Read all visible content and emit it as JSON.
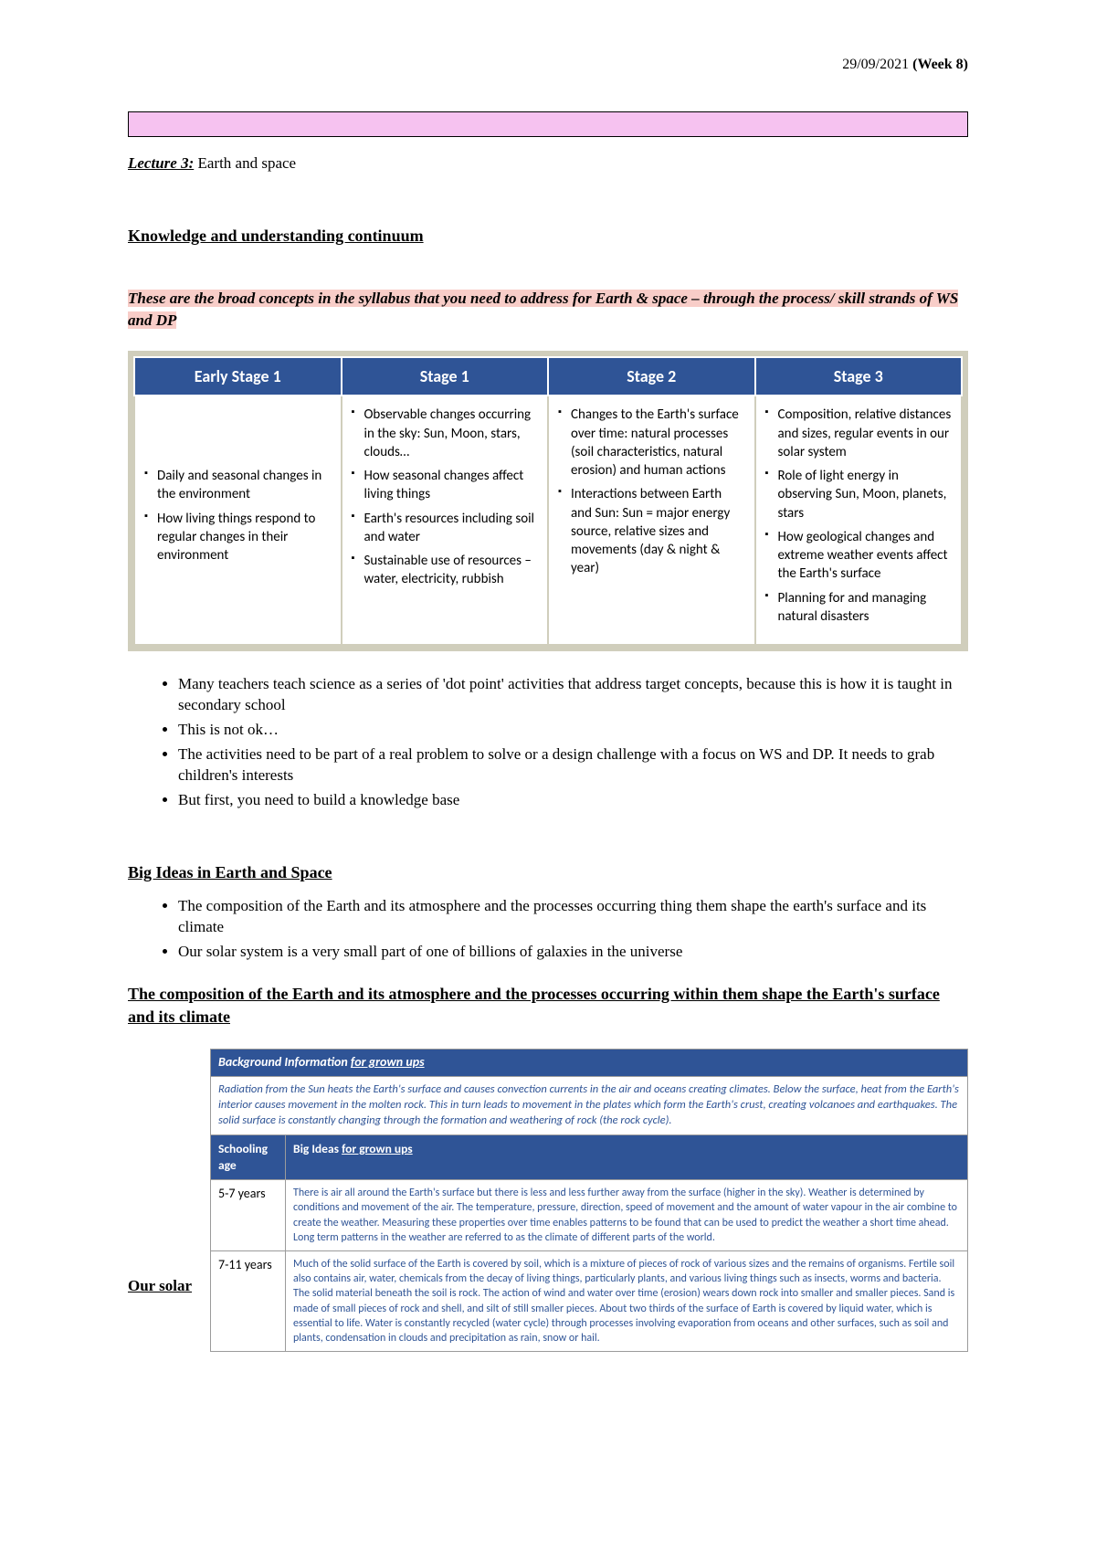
{
  "header": {
    "date": "29/09/2021",
    "week": "(Week 8)"
  },
  "lecture": {
    "label": "Lecture 3:",
    "title": "Earth and space"
  },
  "section1": "Knowledge and understanding continuum",
  "intro": "These are the broad concepts in the syllabus that you need to address for Earth & space – through the process/ skill strands of WS and DP",
  "stageTable": {
    "headers": [
      "Early Stage 1",
      "Stage 1",
      "Stage 2",
      "Stage 3"
    ],
    "cells": {
      "es1": [
        "Daily and seasonal changes in the environment",
        "How living things respond to regular changes in their environment"
      ],
      "s1": [
        "Observable changes occurring in the sky: Sun, Moon, stars, clouds…",
        "How seasonal changes affect living things",
        "Earth's resources including soil and water",
        "Sustainable use of resources – water, electricity, rubbish"
      ],
      "s2": [
        "Changes to the Earth's surface over time: natural processes (soil characteristics, natural erosion) and human actions",
        "Interactions between Earth and Sun: Sun = major energy source, relative sizes and movements (day & night & year)"
      ],
      "s3": [
        "Composition, relative distances and sizes, regular events in our solar system",
        "Role of light energy in observing Sun, Moon, planets, stars",
        "How geological changes and extreme weather events affect the Earth's surface",
        "Planning for and managing natural disasters"
      ]
    }
  },
  "notes": [
    "Many teachers teach science as a series of 'dot point' activities that address target concepts, because this is how it is taught in secondary school",
    "This is not ok…",
    "The activities need to be part of a real problem to solve or a design challenge with a focus on WS and DP. It needs to grab children's interests",
    "But first, you need to build a knowledge base"
  ],
  "bigIdeasHeading": "Big Ideas in Earth and Space",
  "bigIdeas": [
    "The composition of the Earth and its atmosphere and the processes occurring thing them shape the earth's surface and its climate",
    "Our solar system is a very small part of one of billions of galaxies in the universe"
  ],
  "subHeading": "The composition of the Earth and its atmosphere and the processes occurring within them shape the Earth's surface and its climate",
  "ourSolar": "Our solar",
  "infoTable": {
    "bgHeader": {
      "pre": "Background Information ",
      "ul": "for grown ups"
    },
    "bgText": "Radiation from the Sun heats the Earth's surface and causes convection currents in the air and oceans creating climates. Below the surface, heat from the Earth's interior causes movement in the molten rock. This in turn leads to movement in the plates which form the Earth's crust, creating volcanoes and earthquakes. The solid surface is constantly changing through the formation and weathering of rock (the rock cycle).",
    "col1": "Schooling age",
    "col2": {
      "pre": "Big Ideas ",
      "ul": "for grown ups"
    },
    "rows": [
      {
        "age": "5-7 years",
        "idea": "There is air all around the Earth's surface but there is less and less further away from the surface (higher in the sky). Weather is determined by conditions and movement of the air. The temperature, pressure, direction, speed of movement and the amount of water vapour in the air combine to create the weather. Measuring these properties over time enables patterns to be found that can be used to predict the weather a short time ahead. Long term patterns in the weather are referred to as the climate of different parts of the world."
      },
      {
        "age": "7-11 years",
        "idea": "Much of the solid surface of the Earth is covered by soil, which is a mixture of pieces of rock of various sizes and the remains of organisms. Fertile soil also contains air, water, chemicals from the decay of living things, particularly plants, and various living things such as insects, worms and bacteria. The solid material beneath the soil is rock. The action of wind and water over time (erosion) wears down rock into smaller and smaller pieces. Sand is made of small pieces of rock and shell, and silt of still smaller pieces. About two thirds of the surface of Earth is covered by liquid water, which is essential to life. Water is constantly recycled (water cycle) through processes involving evaporation from oceans and other surfaces, such as soil and plants, condensation in clouds and precipitation as rain, snow or hail."
      }
    ]
  }
}
